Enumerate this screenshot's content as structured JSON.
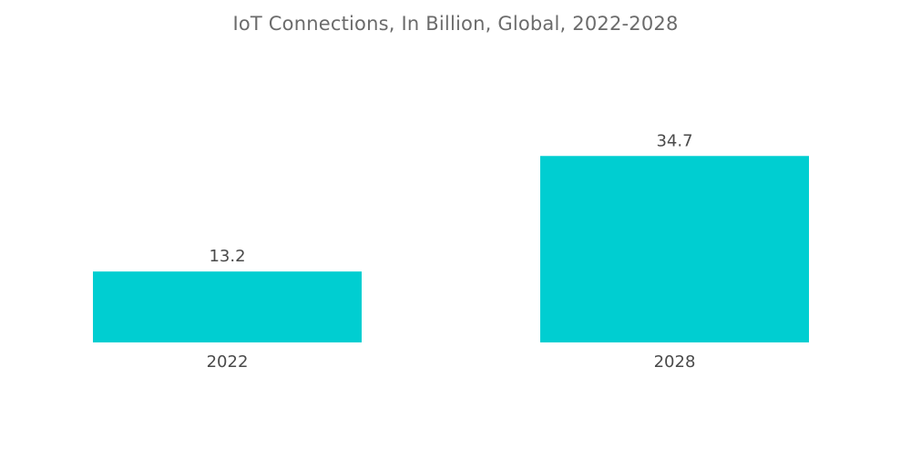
{
  "chart_data": {
    "type": "bar",
    "title": "IoT Connections, In Billion, Global, 2022-2028",
    "categories": [
      "2022",
      "2028"
    ],
    "values": [
      13.2,
      34.7
    ],
    "data_labels": [
      "13.2",
      "34.7"
    ],
    "xlabel": "",
    "ylabel": "",
    "ylim": [
      0,
      40
    ],
    "grid": false,
    "legend": "none",
    "colors": {
      "bar": "#00CED1",
      "text": "#4a4a4a",
      "title": "#6b6b6b"
    }
  }
}
